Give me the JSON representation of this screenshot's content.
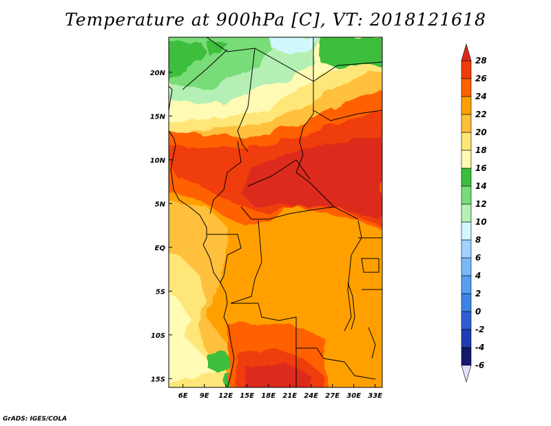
{
  "title": "Temperature at 900hPa [C], VT: 2018121618",
  "credit": "GrADS: IGES/COLA",
  "map": {
    "lon_range": [
      4,
      34
    ],
    "lat_range": [
      -16,
      24
    ],
    "lon_ticks": [
      {
        "value": 6,
        "label": "6E"
      },
      {
        "value": 9,
        "label": "9E"
      },
      {
        "value": 12,
        "label": "12E"
      },
      {
        "value": 15,
        "label": "15E"
      },
      {
        "value": 18,
        "label": "18E"
      },
      {
        "value": 21,
        "label": "21E"
      },
      {
        "value": 24,
        "label": "24E"
      },
      {
        "value": 27,
        "label": "27E"
      },
      {
        "value": 30,
        "label": "30E"
      },
      {
        "value": 33,
        "label": "33E"
      }
    ],
    "lat_ticks": [
      {
        "value": 20,
        "label": "20N"
      },
      {
        "value": 15,
        "label": "15N"
      },
      {
        "value": 10,
        "label": "10N"
      },
      {
        "value": 5,
        "label": "5N"
      },
      {
        "value": 0,
        "label": "EQ"
      },
      {
        "value": -5,
        "label": "5S"
      },
      {
        "value": -10,
        "label": "10S"
      },
      {
        "value": -15,
        "label": "15S"
      }
    ]
  },
  "colorbar": {
    "levels": [
      -6,
      -4,
      -2,
      0,
      2,
      4,
      6,
      8,
      10,
      12,
      14,
      16,
      18,
      20,
      22,
      24,
      26,
      28
    ],
    "below_color": "#e1e1ff",
    "above_color": "#dc2a1c",
    "colors": [
      "#13186b",
      "#1e3cb4",
      "#2d5ed2",
      "#3c84e6",
      "#55a0f0",
      "#78b9fa",
      "#a0d2ff",
      "#d2f8ff",
      "#b4f0b4",
      "#78dc78",
      "#3cbe3c",
      "#fffab4",
      "#ffe678",
      "#ffc03c",
      "#ffa000",
      "#ff6000",
      "#f03c0a"
    ]
  },
  "field_colors": {
    "t14": "#3cbe3c",
    "t12": "#78dc78",
    "t10": "#b4f0b4",
    "t16": "#fffab4",
    "t18": "#ffe678",
    "t20": "#ffc03c",
    "t22": "#ffa000",
    "t24": "#ff6000",
    "t26": "#f03c0a",
    "t28": "#dc2a1c"
  }
}
